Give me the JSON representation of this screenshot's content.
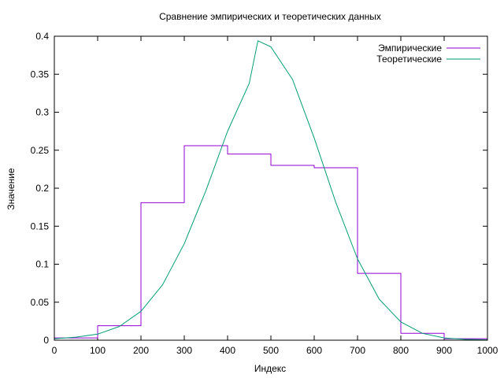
{
  "chart_data": {
    "type": "line",
    "title": "Сравнение эмпирических и теоретических данных",
    "xlabel": "Индекс",
    "ylabel": "Значение",
    "xlim": [
      0,
      1000
    ],
    "ylim": [
      0,
      0.4
    ],
    "x_ticks": [
      0,
      100,
      200,
      300,
      400,
      500,
      600,
      700,
      800,
      900,
      1000
    ],
    "y_ticks": [
      0,
      0.05,
      0.1,
      0.15,
      0.2,
      0.25,
      0.3,
      0.35,
      0.4
    ],
    "x_tick_labels": [
      "0",
      "100",
      "200",
      "300",
      "400",
      "500",
      "600",
      "700",
      "800",
      "900",
      "1000"
    ],
    "y_tick_labels": [
      "0",
      "0.05",
      "0.1",
      "0.15",
      "0.2",
      "0.25",
      "0.3",
      "0.35",
      "0.4"
    ],
    "grid": false,
    "legend_position": "top-right",
    "series": [
      {
        "name": "Эмпирические",
        "kind": "step",
        "color": "#9400d3",
        "x": [
          0,
          100,
          200,
          300,
          400,
          500,
          600,
          700,
          800,
          900,
          1000
        ],
        "y": [
          0.003,
          0.019,
          0.181,
          0.256,
          0.245,
          0.23,
          0.227,
          0.088,
          0.009,
          0.002,
          0.002
        ]
      },
      {
        "name": "Теоретические",
        "kind": "line",
        "color": "#009e73",
        "x": [
          0,
          50,
          100,
          150,
          200,
          250,
          300,
          350,
          400,
          450,
          470,
          500,
          550,
          600,
          650,
          700,
          750,
          800,
          850,
          900,
          950,
          1000
        ],
        "y": [
          0.002,
          0.004,
          0.008,
          0.018,
          0.038,
          0.073,
          0.127,
          0.197,
          0.275,
          0.338,
          0.394,
          0.386,
          0.343,
          0.266,
          0.181,
          0.107,
          0.054,
          0.024,
          0.009,
          0.003,
          0.001,
          0.0005
        ]
      }
    ]
  }
}
